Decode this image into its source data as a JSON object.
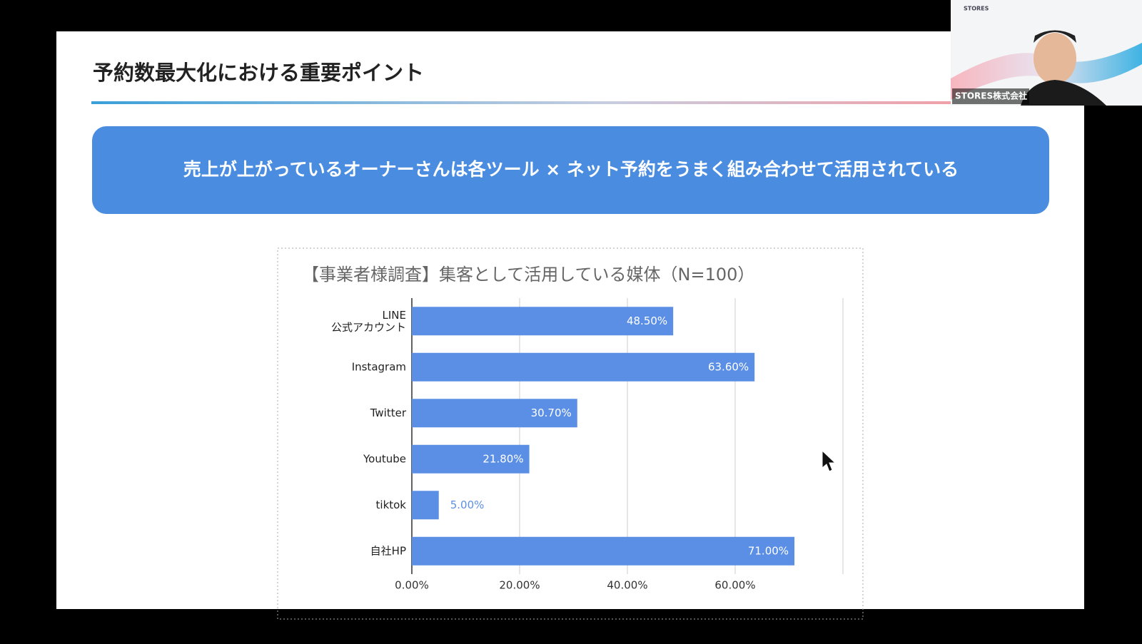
{
  "slide": {
    "title": "予約数最大化における重要ポイント",
    "banner": "売上が上がっているオーナーさんは各ツール × ネット予約をうまく組み合わせて活用されている"
  },
  "video": {
    "logo": "STORES",
    "label": "STORES株式会社"
  },
  "chart_data": {
    "type": "bar",
    "orientation": "horizontal",
    "title": "【事業者様調査】集客として活用している媒体（N=100）",
    "categories": [
      "LINE\n公式アカウント",
      "Instagram",
      "Twitter",
      "Youtube",
      "tiktok",
      "自社HP"
    ],
    "values": [
      48.5,
      63.6,
      30.7,
      21.8,
      5.0,
      71.0
    ],
    "value_labels": [
      "48.50%",
      "63.60%",
      "30.70%",
      "21.80%",
      "5.00%",
      "71.00%"
    ],
    "color": "#5b8fe6",
    "xlim": [
      0,
      80
    ],
    "xticks": [
      {
        "value": 0,
        "label": "0.00%"
      },
      {
        "value": 20,
        "label": "20.00%"
      },
      {
        "value": 40,
        "label": "40.00%"
      },
      {
        "value": 60,
        "label": "60.00%"
      }
    ],
    "grid": true
  }
}
